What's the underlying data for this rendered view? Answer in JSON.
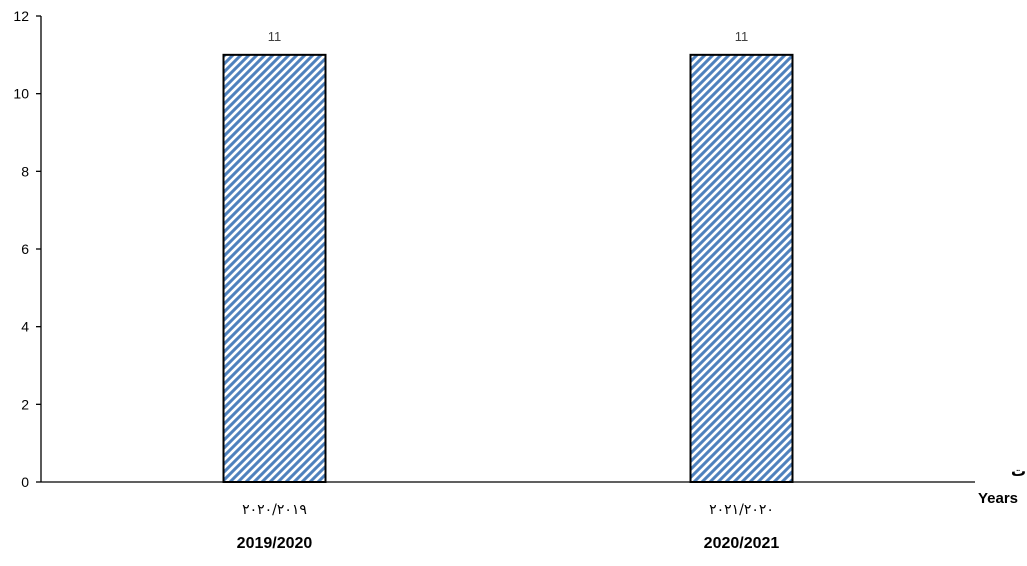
{
  "chart_data": {
    "type": "bar",
    "categories": [
      "2019/2020",
      "2020/2021"
    ],
    "categories_ar": [
      "٢٠٢٠/٢٠١٩",
      "٢٠٢١/٢٠٢٠"
    ],
    "values": [
      11,
      11
    ],
    "data_labels": [
      "11",
      "11"
    ],
    "ylim": [
      0,
      12
    ],
    "yticks": [
      0,
      2,
      4,
      6,
      8,
      10,
      12
    ],
    "xlabel_ar": "السنوات",
    "xlabel_en": "Years",
    "grid": false,
    "bar_pattern": "diagonal-hatch",
    "bar_colors": {
      "hatch": "#4f81bd",
      "background": "#ffffff",
      "outline": "#000000"
    }
  }
}
